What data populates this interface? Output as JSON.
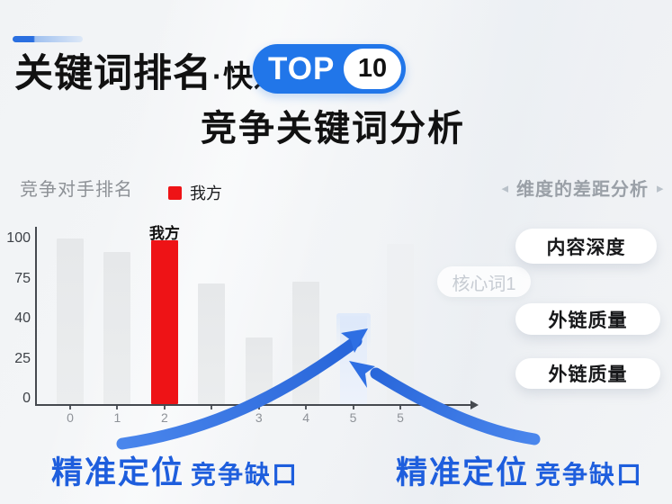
{
  "header": {
    "title_main": "关键词排名",
    "title_sub": "·快速",
    "badge_top": "TOP",
    "badge_number": "10",
    "subtitle": "竞争关键词分析"
  },
  "chart": {
    "title": "竞争对手排名",
    "legend_label": "我方"
  },
  "chart_data": {
    "type": "bar",
    "title": "竞争对手排名",
    "categories": [
      "0",
      "1",
      "2",
      "",
      "3",
      "4",
      "5",
      "5"
    ],
    "values": [
      100,
      92,
      99,
      73,
      40,
      74,
      53,
      97
    ],
    "bar_types": [
      "competitor",
      "competitor",
      "ours",
      "competitor",
      "competitor",
      "competitor",
      "gap",
      "faint"
    ],
    "bar_annotation": {
      "index": 2,
      "label": "我方"
    },
    "y_ticks": [
      "100",
      "75",
      "40",
      "25",
      "0"
    ],
    "ylim": [
      0,
      100
    ],
    "xlabel": "",
    "ylabel": "",
    "grid": false,
    "legend_position": "top",
    "series_colors": {
      "ours": "#ee1316",
      "competitor": "#e9eaec",
      "gap": "#dfe9f9",
      "faint": "#edeff1"
    }
  },
  "panel": {
    "left_arrow": "◂",
    "right_arrow": "▸",
    "header": "维度的差距分析",
    "floating_tag": "核心词1",
    "buttons": [
      "内容深度",
      "外链质量",
      "外链质量"
    ]
  },
  "annotations": {
    "left": {
      "strong": "精准定位",
      "rest": "竞争缺口"
    },
    "right": {
      "strong": "精准定位",
      "rest": "竞争缺口"
    }
  },
  "colors": {
    "accent_blue": "#2176e9",
    "arrow_blue": "#2e6fe4",
    "ours_red": "#ed1315",
    "annotation_blue": "#1e5edd",
    "background": "#f2f4f6"
  }
}
